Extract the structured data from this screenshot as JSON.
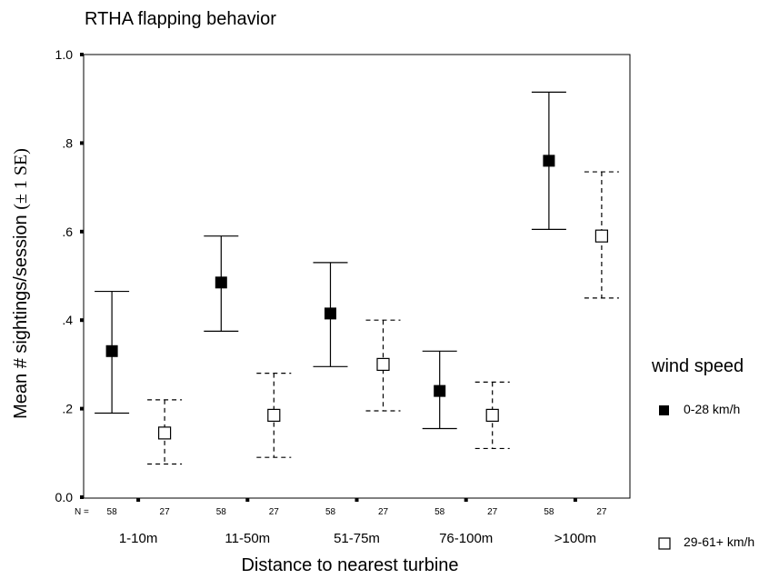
{
  "chart_data": {
    "type": "scatter",
    "title": "RTHA flapping behavior",
    "xlabel": "Distance to nearest turbine",
    "ylabel_main": "Mean # sightings/session ",
    "ylabel_paren": "(± 1 SE)",
    "ylim": [
      0,
      1.0
    ],
    "yticks": [
      "0.0",
      ".2",
      ".4",
      ".6",
      ".8",
      "1.0"
    ],
    "categories": [
      "1-10m",
      "11-50m",
      "51-75m",
      "76-100m",
      ">100m"
    ],
    "n_prefix": "N =",
    "n_values": [
      [
        58,
        27
      ],
      [
        58,
        27
      ],
      [
        58,
        27
      ],
      [
        58,
        27
      ],
      [
        58,
        27
      ]
    ],
    "legend_title": "wind speed",
    "legend_position": "right",
    "grid": false,
    "series": [
      {
        "name": "0-28 km/h",
        "marker": "filled-square",
        "line": "solid",
        "color": "#000000",
        "means": [
          0.33,
          0.485,
          0.415,
          0.24,
          0.76
        ],
        "lower": [
          0.19,
          0.375,
          0.295,
          0.155,
          0.605
        ],
        "upper": [
          0.465,
          0.59,
          0.53,
          0.33,
          0.915
        ]
      },
      {
        "name": "29-61+ km/h",
        "marker": "open-square",
        "line": "dashed",
        "color": "#000000",
        "means": [
          0.145,
          0.185,
          0.3,
          0.185,
          0.59
        ],
        "lower": [
          0.075,
          0.09,
          0.195,
          0.11,
          0.45
        ],
        "upper": [
          0.22,
          0.28,
          0.4,
          0.26,
          0.735
        ]
      }
    ]
  }
}
